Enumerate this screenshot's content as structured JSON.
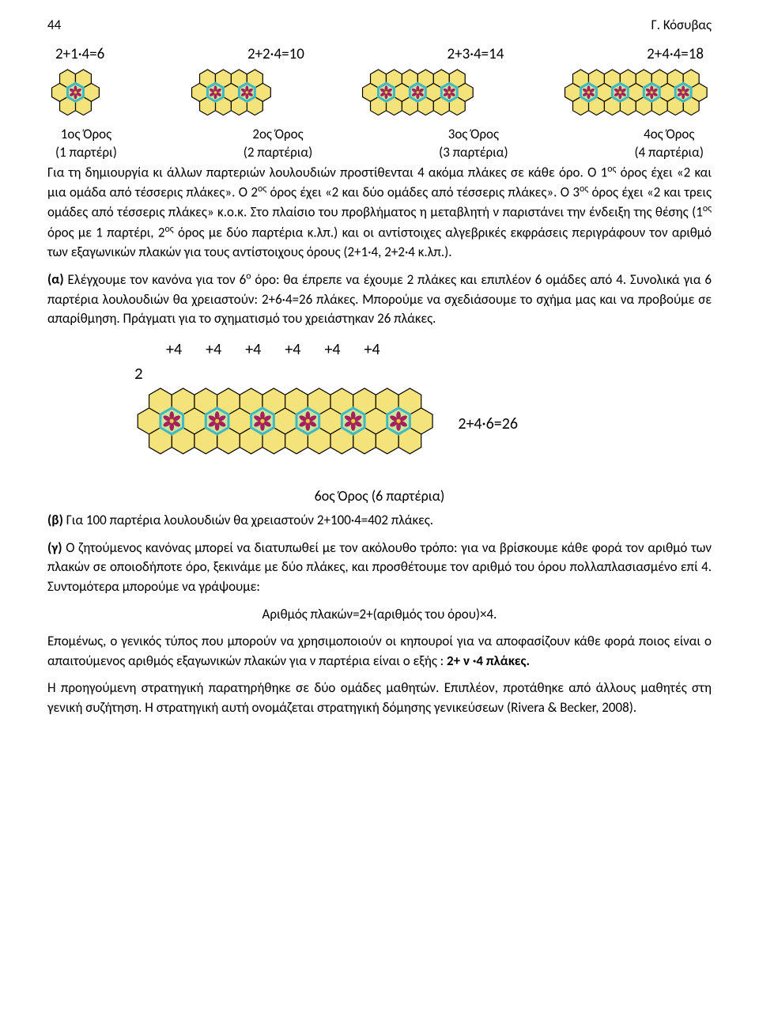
{
  "page_number": "44",
  "author": "Γ. Κόσυβας",
  "equations": [
    "2+1·4=6",
    "2+2·4=10",
    "2+3·4=14",
    "2+4·4=18"
  ],
  "terms": [
    {
      "label": "1ος Όρος",
      "sub": "(1 παρτέρι)"
    },
    {
      "label": "2ος Όρος",
      "sub": "(2 παρτέρια)"
    },
    {
      "label": "3ος Όρος",
      "sub": "(3 παρτέρια)"
    },
    {
      "label": "4ος Όρος",
      "sub": "(4 παρτέρια)"
    }
  ],
  "para1": "Για τη δημιουργία κι άλλων παρτεριών λουλουδιών προστίθενται 4 ακόμα πλάκες σε κάθε όρο. Ο 1ος όρος έχει «2 και μια ομάδα από τέσσερις πλάκες». Ο 2ος όρος έχει «2 και δύο ομάδες από τέσσερις πλάκες». Ο 3ος όρος έχει «2 και τρεις ομάδες από τέσσερις πλάκες» κ.ο.κ. Στο πλαίσιο του προβλήματος η μεταβλητή ν παριστάνει την ένδειξη της θέσης (1ος όρος με 1 παρτέρι, 2ος όρος με δύο παρτέρια κ.λπ.) και οι αντίστοιχες αλγεβρικές εκφράσεις περιγράφουν τον αριθμό των εξαγωνικών πλακών για τους αντίστοιχους όρους (2+1·4, 2+2·4 κ.λπ.).",
  "alpha_label": "(α)",
  "para_alpha": " Ελέγχουμε τον κανόνα για τον 6ο όρο: θα έπρεπε να έχουμε 2 πλάκες και επιπλέον 6 ομάδες από 4. Συνολικά για 6 παρτέρια λουλουδιών θα χρειαστούν: 2+6·4=26 πλάκες. Μπορούμε να σχεδιάσουμε το σχήμα μας και να προβούμε σε απαρίθμηση. Πράγματι για το σχηματισμό του χρειάστηκαν 26 πλάκες.",
  "plus4": [
    "+4",
    "+4",
    "+4",
    "+4",
    "+4",
    "+4"
  ],
  "left_two": "2",
  "result26": "2+4·6=26",
  "caption6": "6ος Όρος (6 παρτέρια)",
  "beta_label": "(β)",
  "para_beta": " Για 100 παρτέρια λουλουδιών θα χρειαστούν 2+100·4=402 πλάκες.",
  "gamma_label": "(γ)",
  "para_gamma": " Ο ζητούμενος κανόνας μπορεί να διατυπωθεί με τον ακόλουθο τρόπο: για να βρίσκουμε κάθε φορά τον αριθμό των πλακών σε οποιοδήποτε όρο, ξεκινάμε με δύο πλάκες, και προσθέτουμε τον αριθμό του όρου πολλαπλασιασμένο επί 4. Συντομότερα μπορούμε να γράψουμε:",
  "formula": "Αριθμός πλακών=2+(αριθμός του όρου)×4.",
  "para_conclusion_pre": "Επομένως, ο γενικός τύπος που μπορούν να χρησιμοποιούν οι κηπουροί για να αποφασίζουν κάθε φορά ποιος είναι ο απαιτούμενος αριθμός εξαγωνικών πλακών για ν παρτέρια είναι ο εξής : ",
  "para_conclusion_bold": "2+ ν ·4 πλάκες.",
  "para_last": "Η προηγούμενη στρατηγική παρατηρήθηκε σε δύο ομάδες μαθητών. Επιπλέον, προτάθηκε από άλλους μαθητές στη γενική συζήτηση. Η στρατηγική αυτή ονομάζεται στρατηγική δόμησης γενικεύσεων (Rivera & Becker, 2008).",
  "hex": {
    "tile_fill": "#f4e37a",
    "tile_stroke": "#000000",
    "flower_fill": "#c8e89a",
    "flower_stroke": "#3fb8c4",
    "petal_fill": "#a81e5e",
    "center_fill": "#f2c84b"
  }
}
